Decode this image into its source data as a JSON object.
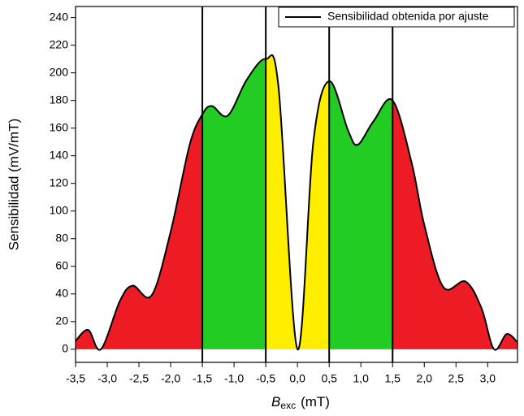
{
  "chart_data": {
    "type": "area",
    "x_label": {
      "symbol": "B",
      "subscript": "exc",
      "unit": "(mT)"
    },
    "y_label": "Sensibilidad (mV/mT)",
    "legend_position": "top-right",
    "series": [
      {
        "name": "Sensibilidad obtenida por ajuste",
        "color": "#000000",
        "x": [
          -3.5,
          -3.3,
          -3.1,
          -2.8,
          -2.6,
          -2.3,
          -2.0,
          -1.7,
          -1.5,
          -1.35,
          -1.1,
          -0.8,
          -0.5,
          -0.3,
          0.0,
          0.25,
          0.5,
          0.8,
          0.95,
          1.2,
          1.5,
          1.8,
          2.0,
          2.3,
          2.65,
          2.9,
          3.1,
          3.3,
          3.47
        ],
        "values": [
          6,
          14,
          0,
          35,
          46,
          39,
          85,
          148,
          170,
          176,
          169,
          195,
          210,
          190,
          0,
          150,
          194,
          158,
          148,
          165,
          180,
          135,
          90,
          45,
          49,
          30,
          0,
          11,
          5
        ]
      }
    ],
    "regions": [
      {
        "from": -3.5,
        "to": -1.5,
        "color": "#ed1c24"
      },
      {
        "from": -1.5,
        "to": -0.5,
        "color": "#22cc22"
      },
      {
        "from": -0.5,
        "to": 0.5,
        "color": "#ffee00"
      },
      {
        "from": 0.5,
        "to": 1.5,
        "color": "#22cc22"
      },
      {
        "from": 1.5,
        "to": 3.47,
        "color": "#ed1c24"
      }
    ],
    "vlines": [
      -1.5,
      -0.5,
      0.5,
      1.5
    ],
    "xlim": [
      -3.5,
      3.47
    ],
    "ylim": [
      -9.5,
      248
    ],
    "xticks": [
      {
        "value": -3.5,
        "label": "-3,5"
      },
      {
        "value": -3.0,
        "label": "-3,0"
      },
      {
        "value": -2.5,
        "label": "-2,5"
      },
      {
        "value": -2.0,
        "label": "-2,0"
      },
      {
        "value": -1.5,
        "label": "-1,5"
      },
      {
        "value": -1.0,
        "label": "-1,0"
      },
      {
        "value": -0.5,
        "label": "-0,5"
      },
      {
        "value": 0.0,
        "label": "0,0"
      },
      {
        "value": 0.5,
        "label": "0,5"
      },
      {
        "value": 1.0,
        "label": "1,0"
      },
      {
        "value": 1.5,
        "label": "1,5"
      },
      {
        "value": 2.0,
        "label": "2,0"
      },
      {
        "value": 2.5,
        "label": "2,5"
      },
      {
        "value": 3.0,
        "label": "3,0"
      }
    ],
    "yticks": [
      0,
      20,
      40,
      60,
      80,
      100,
      120,
      140,
      160,
      180,
      200,
      220,
      240
    ]
  }
}
